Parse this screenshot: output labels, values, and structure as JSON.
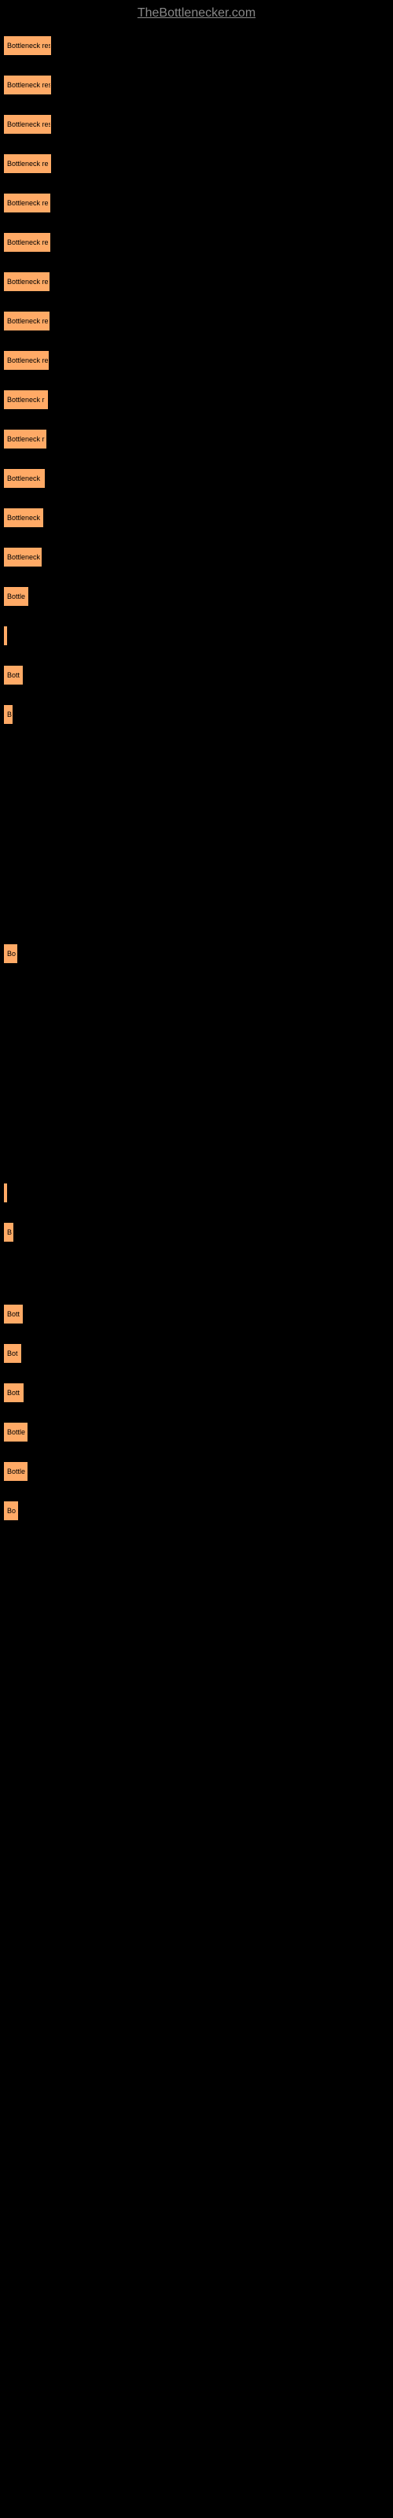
{
  "header": {
    "site_name": "TheBottlenecker.com"
  },
  "chart": {
    "type": "bar",
    "background_color": "#000000",
    "bar_color": "#ffaa66",
    "text_color": "#000000",
    "bars": [
      {
        "width": 60,
        "label": "Bottleneck res"
      },
      {
        "width": 60,
        "label": "Bottleneck res"
      },
      {
        "width": 60,
        "label": "Bottleneck res"
      },
      {
        "width": 60,
        "label": "Bottleneck re"
      },
      {
        "width": 59,
        "label": "Bottleneck re"
      },
      {
        "width": 59,
        "label": "Bottleneck re"
      },
      {
        "width": 58,
        "label": "Bottleneck re"
      },
      {
        "width": 58,
        "label": "Bottleneck re"
      },
      {
        "width": 57,
        "label": "Bottleneck re"
      },
      {
        "width": 56,
        "label": "Bottleneck r"
      },
      {
        "width": 54,
        "label": "Bottleneck r"
      },
      {
        "width": 52,
        "label": "Bottleneck"
      },
      {
        "width": 50,
        "label": "Bottleneck"
      },
      {
        "width": 48,
        "label": "Bottleneck"
      },
      {
        "width": 31,
        "label": "Bottle"
      },
      {
        "width": 4,
        "label": ""
      },
      {
        "width": 24,
        "label": "Bott"
      },
      {
        "width": 11,
        "label": "B"
      },
      {
        "width": 17,
        "label": "Bo"
      },
      {
        "width": 4,
        "label": ""
      },
      {
        "width": 12,
        "label": "B"
      },
      {
        "width": 24,
        "label": "Bott"
      },
      {
        "width": 22,
        "label": "Bot"
      },
      {
        "width": 25,
        "label": "Bott"
      },
      {
        "width": 30,
        "label": "Bottle"
      },
      {
        "width": 30,
        "label": "Bottle"
      },
      {
        "width": 18,
        "label": "Bo"
      }
    ],
    "row_gaps": [
      26,
      26,
      26,
      26,
      26,
      26,
      26,
      26,
      26,
      26,
      26,
      26,
      26,
      26,
      26,
      26,
      26,
      280,
      280,
      26,
      80,
      26,
      26,
      26,
      26,
      26,
      26
    ]
  }
}
